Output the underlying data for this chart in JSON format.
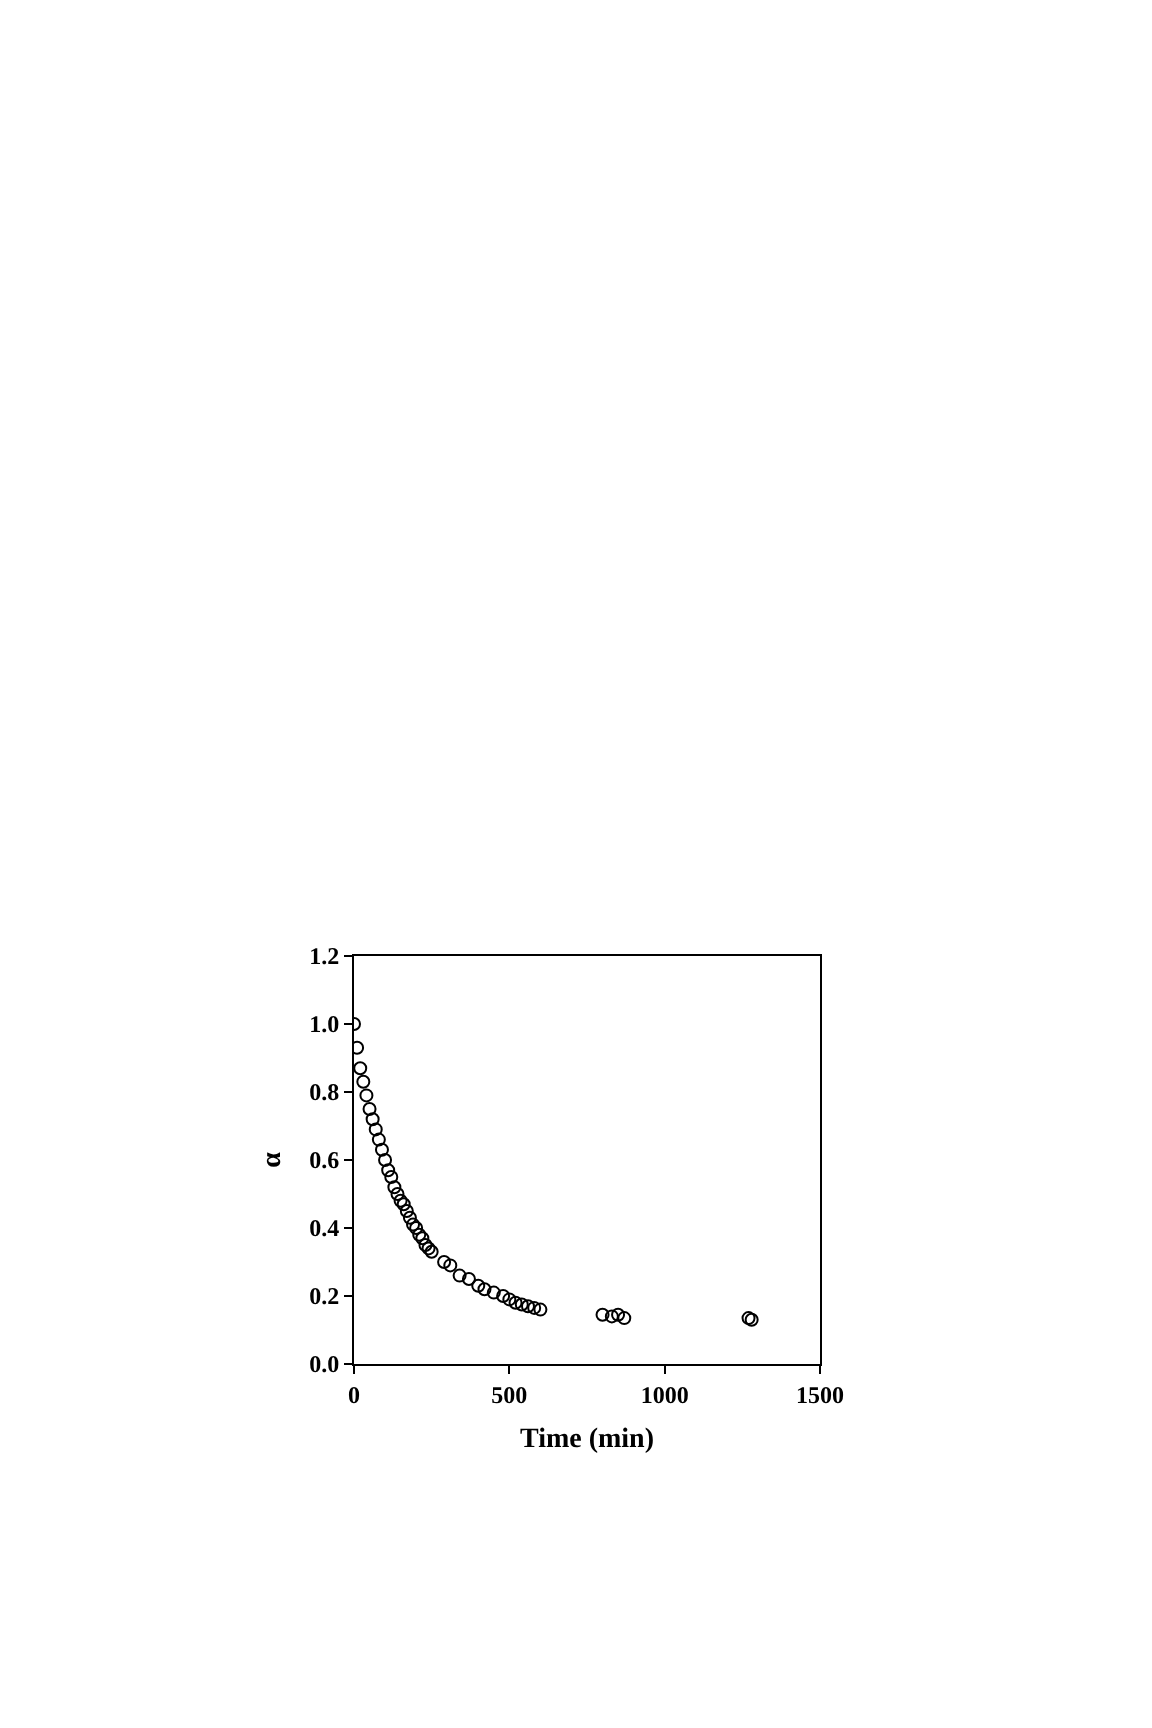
{
  "chart_data": {
    "type": "scatter",
    "xlabel": "Time (min)",
    "ylabel": "α",
    "marker": "circle",
    "grid": false,
    "xlim": [
      0,
      1500
    ],
    "xticks": [
      0,
      500,
      1000,
      1500
    ],
    "ylim": [
      0,
      1.2
    ],
    "yticks": [
      {
        "value": 0,
        "label": "0.0"
      },
      0.2,
      0.4,
      0.6,
      0.8,
      {
        "value": 1,
        "label": "1.0"
      },
      1.2
    ],
    "series": [
      {
        "color": "#000000",
        "x": [
          0,
          10,
          20,
          30,
          40,
          50,
          60,
          70,
          80,
          90,
          100,
          110,
          120,
          130,
          140,
          150,
          160,
          170,
          180,
          190,
          200,
          210,
          220,
          230,
          240,
          250,
          290,
          310,
          340,
          370,
          400,
          420,
          450,
          480,
          500,
          520,
          540,
          560,
          580,
          600,
          800,
          830,
          850,
          870,
          1270,
          1280
        ],
        "values": [
          1.0,
          0.93,
          0.87,
          0.83,
          0.79,
          0.75,
          0.72,
          0.69,
          0.66,
          0.63,
          0.6,
          0.57,
          0.55,
          0.52,
          0.5,
          0.48,
          0.47,
          0.45,
          0.43,
          0.41,
          0.4,
          0.38,
          0.37,
          0.35,
          0.34,
          0.33,
          0.3,
          0.29,
          0.26,
          0.25,
          0.23,
          0.22,
          0.21,
          0.2,
          0.19,
          0.18,
          0.175,
          0.17,
          0.165,
          0.16,
          0.145,
          0.14,
          0.145,
          0.135,
          0.135,
          0.13
        ]
      }
    ]
  }
}
